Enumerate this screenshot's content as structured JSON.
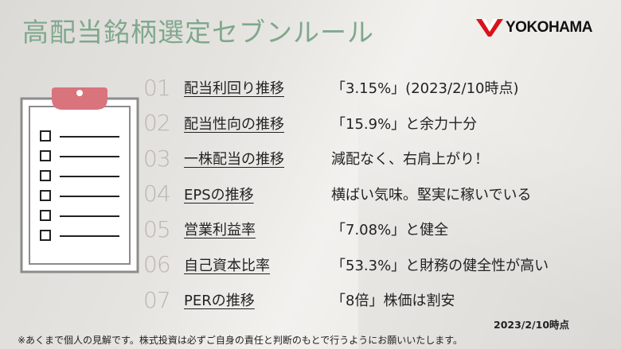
{
  "title": "高配当銘柄選定セブンルール",
  "logo": {
    "text": "YOKOHAMA",
    "color": "#d7141a"
  },
  "rules": [
    {
      "num": "01",
      "label": "配当利回り推移",
      "desc": "「3.15%」(2023/2/10時点)"
    },
    {
      "num": "02",
      "label": "配当性向の推移",
      "desc": "「15.9%」と余力十分"
    },
    {
      "num": "03",
      "label": "一株配当の推移",
      "desc": "減配なく、右肩上がり！"
    },
    {
      "num": "04",
      "label": "EPSの推移",
      "desc": "横ばい気味。堅実に稼いでいる"
    },
    {
      "num": "05",
      "label": "営業利益率",
      "desc": "「7.08%」と健全"
    },
    {
      "num": "06",
      "label": "自己資本比率",
      "desc": "「53.3%」と財務の健全性が高い"
    },
    {
      "num": "07",
      "label": "PERの推移",
      "desc": "「8倍」株価は割安"
    }
  ],
  "date": "2023/2/10時点",
  "note": "※あくまで個人の見解です。株式投資は必ずご自身の責任と判断のもとで行うようにお願いいたします。",
  "colors": {
    "title": "#7fa88d",
    "clip": "#d9737c",
    "number": "#b9b6b1"
  }
}
